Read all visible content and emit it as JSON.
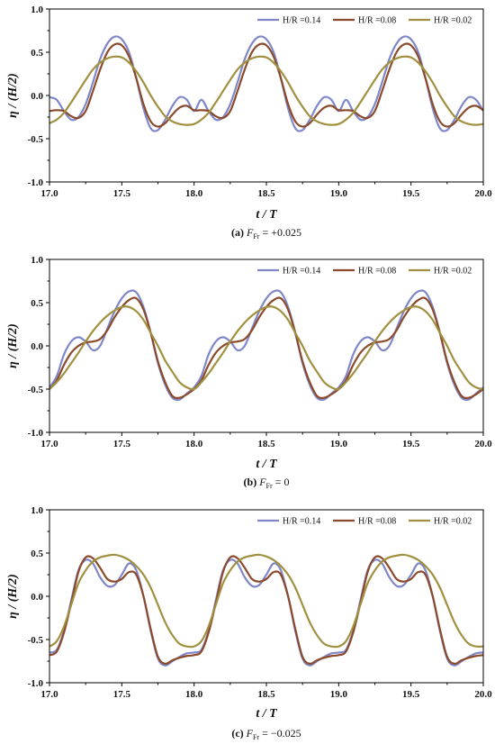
{
  "chart_data": [
    {
      "type": "line",
      "caption": {
        "label": "(a)",
        "var": "F",
        "sub": "Fr",
        "rest": " = +0.025"
      },
      "xlabel": "t / T",
      "ylabel": "η / (H/2)",
      "xlim": [
        17.0,
        20.0
      ],
      "ylim": [
        -1.0,
        1.0
      ],
      "xticks": [
        "17.0",
        "17.5",
        "18.0",
        "18.5",
        "19.0",
        "19.5",
        "20.0"
      ],
      "yticks": [
        "-1.0",
        "-0.5",
        "0.0",
        "0.5",
        "1.0"
      ],
      "legend_position": "top-right",
      "series": [
        {
          "name": "H/R =0.14",
          "color": "#7f87c9",
          "x": [
            17.0,
            17.05,
            17.1,
            17.15,
            17.2,
            17.25,
            17.3,
            17.35,
            17.4,
            17.45,
            17.5,
            17.55,
            17.6,
            17.65,
            17.7,
            17.75,
            17.8,
            17.85,
            17.9,
            17.95,
            18.0
          ],
          "y": [
            -0.02,
            -0.05,
            -0.18,
            -0.28,
            -0.25,
            -0.1,
            0.15,
            0.42,
            0.6,
            0.68,
            0.65,
            0.5,
            0.2,
            -0.15,
            -0.38,
            -0.4,
            -0.28,
            -0.12,
            -0.02,
            -0.05,
            -0.18
          ]
        },
        {
          "name": "H/R =0.08",
          "color": "#8b4a2b",
          "x": [
            17.0,
            17.05,
            17.1,
            17.15,
            17.2,
            17.25,
            17.3,
            17.35,
            17.4,
            17.45,
            17.5,
            17.55,
            17.6,
            17.65,
            17.7,
            17.75,
            17.8,
            17.85,
            17.9,
            17.95,
            18.0
          ],
          "y": [
            -0.18,
            -0.17,
            -0.18,
            -0.24,
            -0.26,
            -0.18,
            0.05,
            0.3,
            0.5,
            0.59,
            0.58,
            0.45,
            0.2,
            -0.1,
            -0.3,
            -0.36,
            -0.32,
            -0.22,
            -0.14,
            -0.12,
            -0.17
          ]
        },
        {
          "name": "H/R =0.02",
          "color": "#a09040",
          "x": [
            17.0,
            17.05,
            17.1,
            17.15,
            17.2,
            17.25,
            17.3,
            17.35,
            17.4,
            17.45,
            17.5,
            17.55,
            17.6,
            17.65,
            17.7,
            17.75,
            17.8,
            17.85,
            17.9,
            17.95,
            18.0
          ],
          "y": [
            -0.32,
            -0.28,
            -0.2,
            -0.08,
            0.05,
            0.18,
            0.3,
            0.38,
            0.43,
            0.45,
            0.44,
            0.38,
            0.28,
            0.15,
            0.0,
            -0.13,
            -0.24,
            -0.3,
            -0.33,
            -0.34,
            -0.33
          ]
        }
      ]
    },
    {
      "type": "line",
      "caption": {
        "label": "(b)",
        "var": "F",
        "sub": "Fr",
        "rest": " = 0"
      },
      "xlabel": "t / T",
      "ylabel": "η / (H/2)",
      "xlim": [
        17.0,
        20.0
      ],
      "ylim": [
        -1.0,
        1.0
      ],
      "xticks": [
        "17.0",
        "17.5",
        "18.0",
        "18.5",
        "19.0",
        "19.5",
        "20.0"
      ],
      "yticks": [
        "-1.0",
        "-0.5",
        "0.0",
        "0.5",
        "1.0"
      ],
      "legend_position": "top-right",
      "series": [
        {
          "name": "H/R =0.14",
          "color": "#7f87c9",
          "x": [
            17.0,
            17.05,
            17.1,
            17.15,
            17.2,
            17.25,
            17.3,
            17.35,
            17.4,
            17.45,
            17.5,
            17.55,
            17.6,
            17.65,
            17.7,
            17.75,
            17.8,
            17.85,
            17.9,
            17.95,
            18.0
          ],
          "y": [
            -0.48,
            -0.35,
            -0.1,
            0.05,
            0.1,
            0.05,
            -0.05,
            0.0,
            0.2,
            0.4,
            0.55,
            0.63,
            0.62,
            0.45,
            0.15,
            -0.2,
            -0.45,
            -0.6,
            -0.62,
            -0.55,
            -0.48
          ]
        },
        {
          "name": "H/R =0.08",
          "color": "#8b4a2b",
          "x": [
            17.0,
            17.05,
            17.1,
            17.15,
            17.2,
            17.25,
            17.3,
            17.35,
            17.4,
            17.45,
            17.5,
            17.55,
            17.6,
            17.65,
            17.7,
            17.75,
            17.8,
            17.85,
            17.9,
            17.95,
            18.0
          ],
          "y": [
            -0.5,
            -0.4,
            -0.22,
            -0.08,
            0.0,
            0.04,
            0.05,
            0.08,
            0.18,
            0.33,
            0.45,
            0.53,
            0.55,
            0.42,
            0.15,
            -0.18,
            -0.42,
            -0.58,
            -0.6,
            -0.56,
            -0.5
          ]
        },
        {
          "name": "H/R =0.02",
          "color": "#a09040",
          "x": [
            17.0,
            17.05,
            17.1,
            17.15,
            17.2,
            17.25,
            17.3,
            17.35,
            17.4,
            17.45,
            17.5,
            17.55,
            17.6,
            17.65,
            17.7,
            17.75,
            17.8,
            17.85,
            17.9,
            17.95,
            18.0
          ],
          "y": [
            -0.5,
            -0.42,
            -0.32,
            -0.2,
            -0.08,
            0.05,
            0.17,
            0.27,
            0.35,
            0.41,
            0.45,
            0.45,
            0.4,
            0.3,
            0.15,
            0.0,
            -0.17,
            -0.3,
            -0.42,
            -0.48,
            -0.5
          ]
        }
      ]
    },
    {
      "type": "line",
      "caption": {
        "label": "(c)",
        "var": "F",
        "sub": "Fr",
        "rest": " = −0.025"
      },
      "xlabel": "t / T",
      "ylabel": "η / (H/2)",
      "xlim": [
        17.0,
        20.0
      ],
      "ylim": [
        -1.0,
        1.0
      ],
      "xticks": [
        "17.0",
        "17.5",
        "18.0",
        "18.5",
        "19.0",
        "19.5",
        "20.0"
      ],
      "yticks": [
        "-1.0",
        "-0.5",
        "0.0",
        "0.5",
        "1.0"
      ],
      "legend_position": "top-right",
      "series": [
        {
          "name": "H/R =0.14",
          "color": "#7f87c9",
          "x": [
            17.0,
            17.05,
            17.1,
            17.15,
            17.2,
            17.25,
            17.3,
            17.35,
            17.4,
            17.45,
            17.5,
            17.55,
            17.6,
            17.65,
            17.7,
            17.75,
            17.8,
            17.85,
            17.9,
            17.95,
            18.0
          ],
          "y": [
            -0.65,
            -0.62,
            -0.4,
            -0.05,
            0.3,
            0.42,
            0.38,
            0.22,
            0.12,
            0.13,
            0.25,
            0.38,
            0.3,
            0.0,
            -0.4,
            -0.72,
            -0.8,
            -0.75,
            -0.7,
            -0.66,
            -0.65
          ]
        },
        {
          "name": "H/R =0.08",
          "color": "#8b4a2b",
          "x": [
            17.0,
            17.05,
            17.1,
            17.15,
            17.2,
            17.25,
            17.3,
            17.35,
            17.4,
            17.45,
            17.5,
            17.55,
            17.6,
            17.65,
            17.7,
            17.75,
            17.8,
            17.85,
            17.9,
            17.95,
            18.0
          ],
          "y": [
            -0.68,
            -0.64,
            -0.42,
            -0.08,
            0.28,
            0.45,
            0.44,
            0.33,
            0.2,
            0.17,
            0.2,
            0.28,
            0.25,
            0.0,
            -0.38,
            -0.7,
            -0.78,
            -0.74,
            -0.71,
            -0.69,
            -0.68
          ]
        },
        {
          "name": "H/R =0.02",
          "color": "#a09040",
          "x": [
            17.0,
            17.05,
            17.1,
            17.15,
            17.2,
            17.25,
            17.3,
            17.35,
            17.4,
            17.45,
            17.5,
            17.55,
            17.6,
            17.65,
            17.7,
            17.75,
            17.8,
            17.85,
            17.9,
            17.95,
            18.0
          ],
          "y": [
            -0.58,
            -0.52,
            -0.35,
            -0.1,
            0.15,
            0.3,
            0.4,
            0.45,
            0.47,
            0.48,
            0.46,
            0.42,
            0.35,
            0.25,
            0.1,
            -0.1,
            -0.3,
            -0.45,
            -0.55,
            -0.58,
            -0.58
          ]
        }
      ]
    }
  ]
}
